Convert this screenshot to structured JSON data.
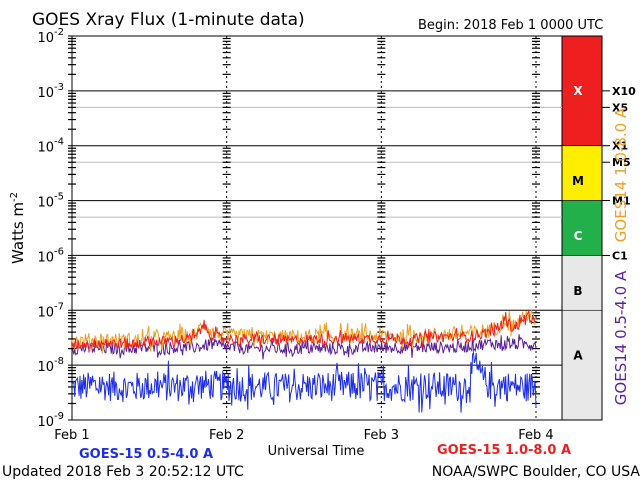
{
  "title": "GOES Xray Flux (1-minute data)",
  "begin_label": "Begin:  2018 Feb 1 0000 UTC",
  "footer": {
    "updated": "Updated 2018 Feb  3 20:52:12 UTC",
    "credit": "NOAA/SWPC Boulder, CO USA"
  },
  "colors": {
    "goes15_short": "#1e2ee6",
    "goes15_long": "#ee1f1f",
    "goes14_short": "#5a1f9a",
    "goes14_long": "#f0a020",
    "band_x": "#ee1f1f",
    "band_m": "#ffee00",
    "band_c": "#22b04a",
    "band_ab": "#e8e8e8"
  },
  "chart_data": {
    "type": "line",
    "x_label": "Universal Time",
    "x_ticks": [
      "Feb 1",
      "Feb 2",
      "Feb 3",
      "Feb 4"
    ],
    "x_range_days": [
      0,
      3
    ],
    "y_label": "Watts m",
    "y_label_sup": "-2",
    "y_scale": "log",
    "y_range": [
      1e-09,
      0.01
    ],
    "y_ticks": [
      {
        "base": "10",
        "exp": "-2",
        "value": 0.01
      },
      {
        "base": "10",
        "exp": "-3",
        "value": 0.001
      },
      {
        "base": "10",
        "exp": "-4",
        "value": 0.0001
      },
      {
        "base": "10",
        "exp": "-5",
        "value": 1e-05
      },
      {
        "base": "10",
        "exp": "-6",
        "value": 1e-06
      },
      {
        "base": "10",
        "exp": "-7",
        "value": 1e-07
      },
      {
        "base": "10",
        "exp": "-8",
        "value": 1e-08
      },
      {
        "base": "10",
        "exp": "-9",
        "value": 1e-09
      }
    ],
    "flare_levels": [
      {
        "label": "X10",
        "value": 0.001
      },
      {
        "label": "X5",
        "value": 0.0005
      },
      {
        "label": "X1",
        "value": 0.0001
      },
      {
        "label": "M5",
        "value": 5e-05
      },
      {
        "label": "M1",
        "value": 1e-05
      },
      {
        "label": "C1",
        "value": 1e-06
      }
    ],
    "flare_classes": [
      {
        "label": "X",
        "from": 0.0001,
        "to": 0.01,
        "color_key": "band_x"
      },
      {
        "label": "M",
        "from": 1e-05,
        "to": 0.0001,
        "color_key": "band_m"
      },
      {
        "label": "C",
        "from": 1e-06,
        "to": 1e-05,
        "color_key": "band_c"
      },
      {
        "label": "B",
        "from": 1e-07,
        "to": 1e-06,
        "color_key": "band_ab"
      },
      {
        "label": "A",
        "from": 1e-09,
        "to": 1e-07,
        "color_key": "band_ab"
      }
    ],
    "right_axis_top": "GOES14 1.0-8.0 A",
    "right_axis_bottom": "GOES14 0.5-4.0 A",
    "legend_left": "GOES-15 0.5-4.0 A",
    "legend_right": "GOES-15 1.0-8.0 A",
    "series": [
      {
        "name": "GOES-15 1.0-8.0 A",
        "color_key": "goes15_long",
        "x": [
          0.0,
          0.1,
          0.2,
          0.3,
          0.4,
          0.5,
          0.6,
          0.7,
          0.8,
          0.85,
          0.9,
          0.95,
          1.0,
          1.1,
          1.2,
          1.3,
          1.4,
          1.5,
          1.6,
          1.7,
          1.8,
          1.9,
          2.0,
          2.1,
          2.2,
          2.3,
          2.4,
          2.5,
          2.55,
          2.6,
          2.65,
          2.7,
          2.75,
          2.8,
          2.85,
          2.9,
          2.95,
          3.0
        ],
        "y": [
          2.4e-08,
          2.4e-08,
          2.6e-08,
          2.5e-08,
          2.4e-08,
          2.8e-08,
          2.7e-08,
          2.9e-08,
          3.2e-08,
          5.5e-08,
          3.6e-08,
          3.2e-08,
          3e-08,
          2.9e-08,
          3e-08,
          2.9e-08,
          2.8e-08,
          2.9e-08,
          3e-08,
          3e-08,
          3.1e-08,
          3e-08,
          3.1e-08,
          3e-08,
          2.9e-08,
          3.2e-08,
          3.3e-08,
          3.3e-08,
          3.3e-08,
          3.5e-08,
          3.7e-08,
          4e-08,
          4.5e-08,
          6.8e-08,
          4.8e-08,
          5.8e-08,
          8.5e-08,
          5.2e-08
        ]
      },
      {
        "name": "GOES14 1.0-8.0 A",
        "color_key": "goes14_long",
        "x": [
          0.0,
          0.2,
          0.4,
          0.6,
          0.8,
          0.85,
          0.9,
          1.0,
          1.2,
          1.4,
          1.6,
          1.8,
          2.0,
          2.2,
          2.4,
          2.6,
          2.7,
          2.75,
          2.8,
          2.85,
          2.9,
          2.95,
          3.0
        ],
        "y": [
          2.7e-08,
          2.9e-08,
          2.8e-08,
          3.1e-08,
          3.5e-08,
          6e-08,
          4e-08,
          3.4e-08,
          3.3e-08,
          3.2e-08,
          3.4e-08,
          3.4e-08,
          3.4e-08,
          3.3e-08,
          3.6e-08,
          3.9e-08,
          4.4e-08,
          4.9e-08,
          7.2e-08,
          5.2e-08,
          6.3e-08,
          9e-08,
          5.8e-08
        ]
      },
      {
        "name": "GOES14 0.5-4.0 A",
        "color_key": "goes14_short",
        "x": [
          0.0,
          0.2,
          0.4,
          0.6,
          0.8,
          0.9,
          1.0,
          1.2,
          1.4,
          1.6,
          1.8,
          2.0,
          2.2,
          2.4,
          2.5,
          2.6,
          2.7,
          2.8,
          2.9,
          3.0
        ],
        "y": [
          2e-08,
          2e-08,
          2e-08,
          2.1e-08,
          2.1e-08,
          2.4e-08,
          2.1e-08,
          2e-08,
          2e-08,
          2e-08,
          2e-08,
          2.1e-08,
          2.1e-08,
          2.1e-08,
          2.1e-08,
          2.3e-08,
          2.5e-08,
          2.4e-08,
          2.4e-08,
          2.5e-08
        ]
      },
      {
        "name": "GOES-15 0.5-4.0 A",
        "color_key": "goes15_short",
        "x": [
          0.0,
          0.1,
          0.2,
          0.3,
          0.4,
          0.5,
          0.6,
          0.7,
          0.8,
          0.9,
          1.0,
          1.1,
          1.2,
          1.3,
          1.4,
          1.5,
          1.6,
          1.7,
          1.8,
          1.9,
          2.0,
          2.1,
          2.2,
          2.3,
          2.4,
          2.5,
          2.55,
          2.6,
          2.65,
          2.7,
          2.8,
          2.9,
          3.0
        ],
        "y": [
          4e-09,
          4e-09,
          4.2e-09,
          4e-09,
          3.9e-09,
          4.2e-09,
          4.1e-09,
          4e-09,
          4.4e-09,
          4.3e-09,
          4.1e-09,
          4e-09,
          4.1e-09,
          4e-09,
          3.9e-09,
          4.1e-09,
          4e-09,
          4.2e-09,
          4.1e-09,
          4.1e-09,
          4.2e-09,
          4e-09,
          4.1e-09,
          4.2e-09,
          4e-09,
          4e-09,
          4.2e-09,
          1e-08,
          6e-09,
          4.2e-09,
          4.2e-09,
          4e-09,
          4.2e-09
        ]
      }
    ]
  }
}
